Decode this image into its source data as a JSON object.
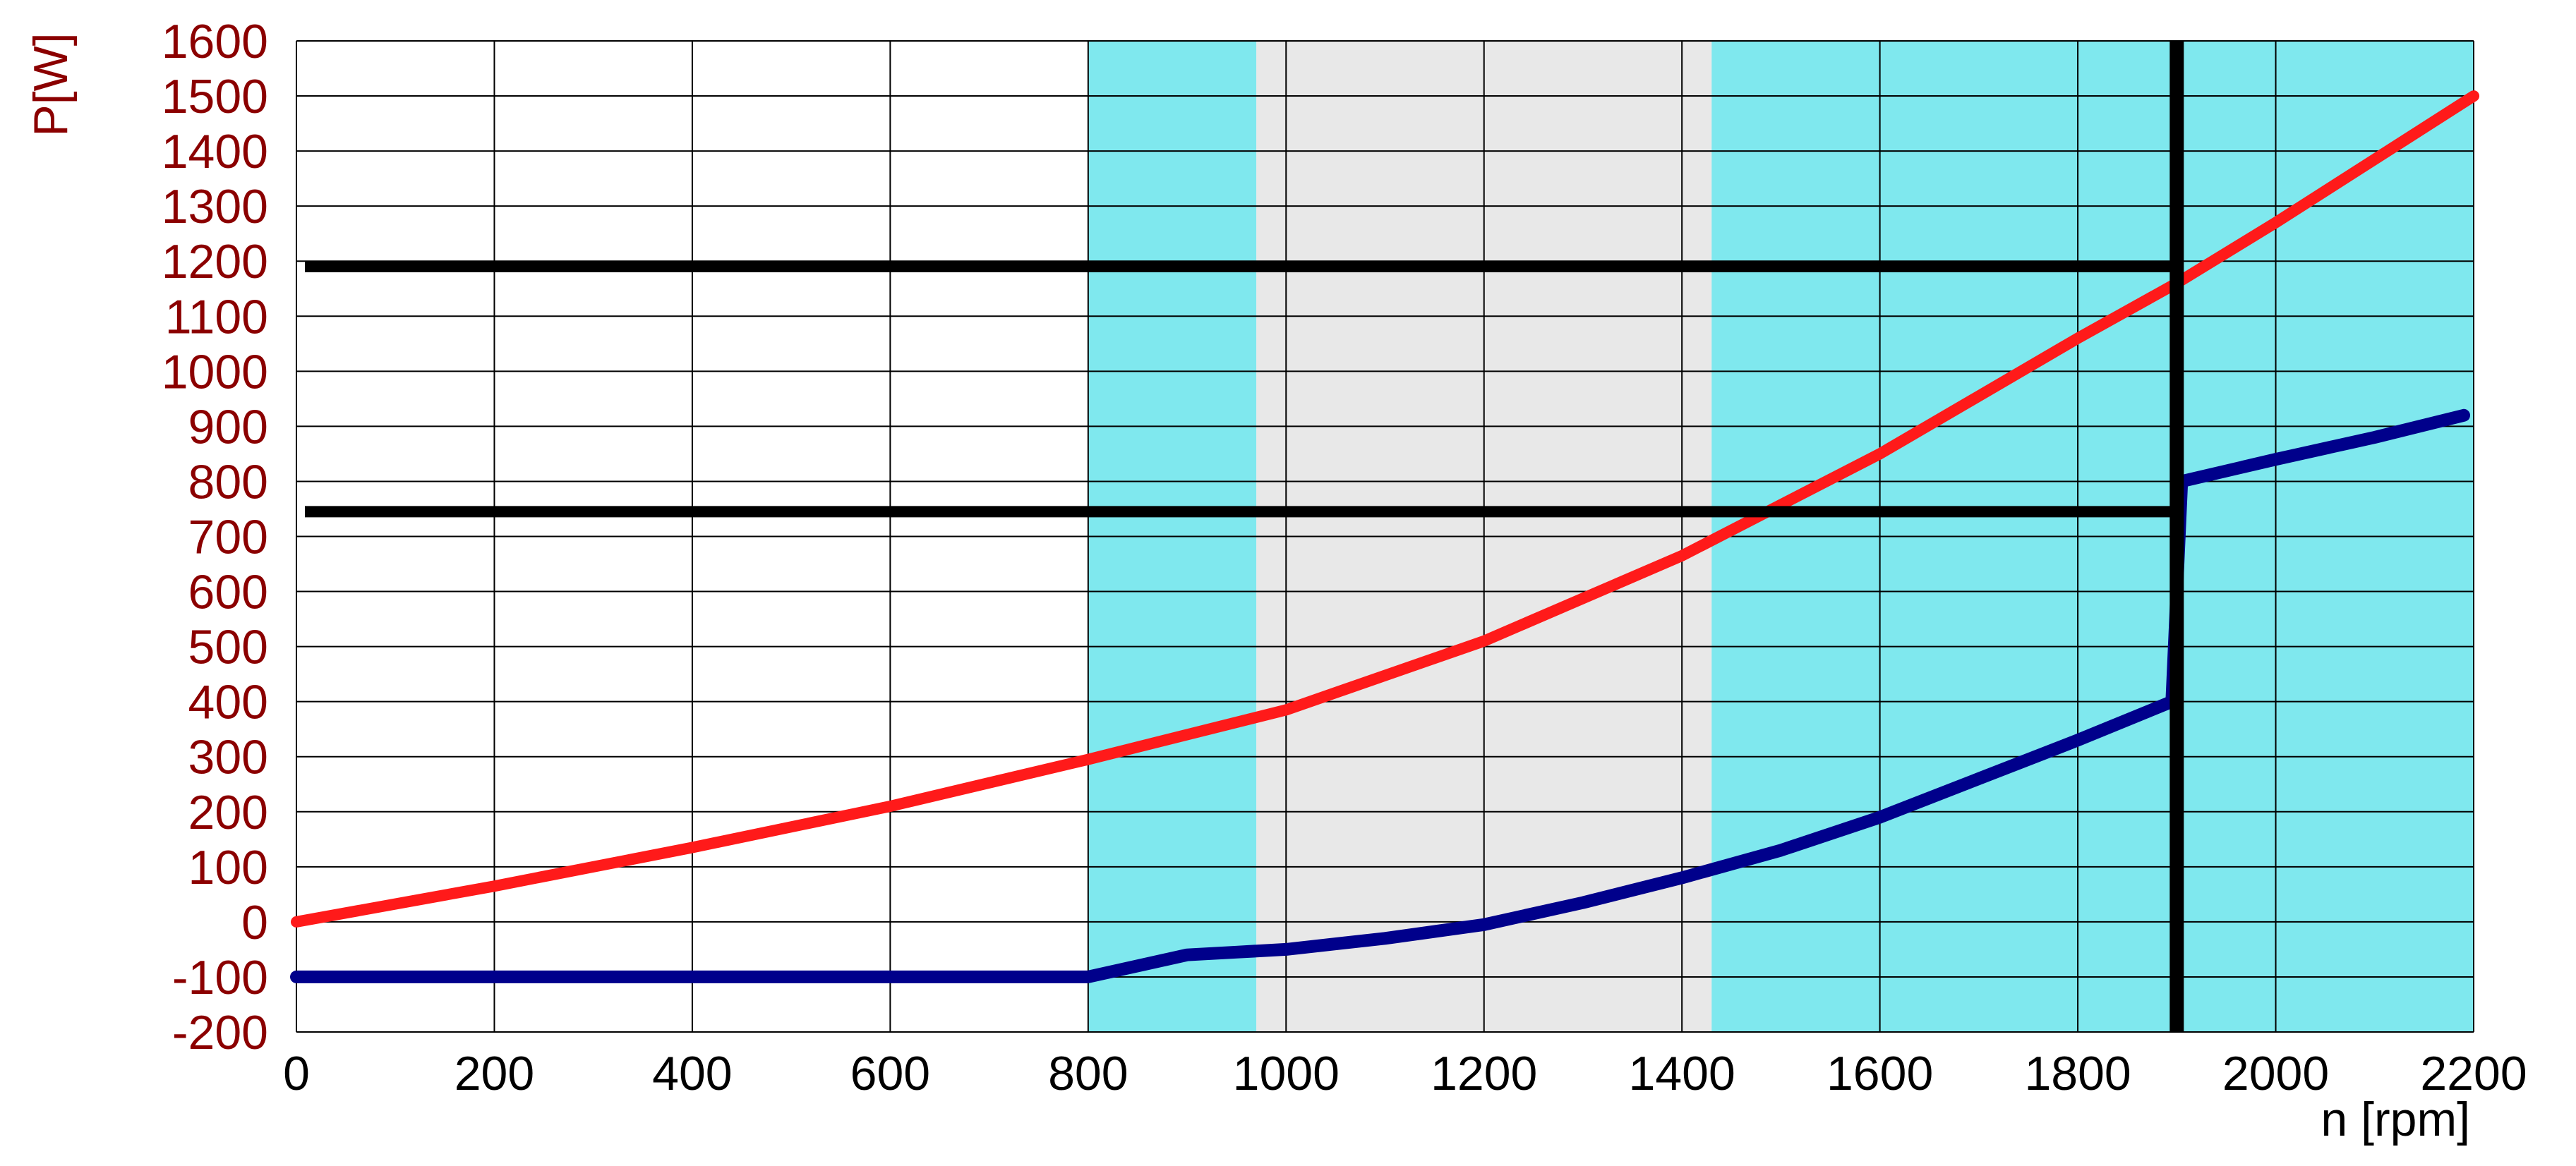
{
  "chart_data": {
    "type": "line",
    "title": "",
    "xlabel": "n [rpm]",
    "ylabel": "P[W]",
    "xlim": [
      0,
      2200
    ],
    "ylim": [
      -200,
      1600
    ],
    "x_ticks": [
      0,
      200,
      400,
      600,
      800,
      1000,
      1200,
      1400,
      1600,
      1800,
      2000,
      2200
    ],
    "y_ticks": [
      -200,
      -100,
      0,
      100,
      200,
      300,
      400,
      500,
      600,
      700,
      800,
      900,
      1000,
      1100,
      1200,
      1300,
      1400,
      1500,
      1600
    ],
    "x_tick_labels": [
      "0",
      "200",
      "400",
      "600",
      "800",
      "1000",
      "1200",
      "1400",
      "1600",
      "1800",
      "2000",
      "2200"
    ],
    "y_tick_labels": [
      "-200",
      "-100",
      "0",
      "100",
      "200",
      "300",
      "400",
      "500",
      "600",
      "700",
      "800",
      "900",
      "1000",
      "1100",
      "1200",
      "1300",
      "1400",
      "1500",
      "1600"
    ],
    "grid": true,
    "shaded_bands": [
      {
        "x": [
          800,
          970
        ],
        "color": "#7fe8ee"
      },
      {
        "x": [
          970,
          1430
        ],
        "color": "#e8e8e8"
      },
      {
        "x": [
          1430,
          2200
        ],
        "color": "#7fe8ee"
      }
    ],
    "reference_lines": [
      {
        "orientation": "horizontal",
        "y": 1190,
        "x": [
          0,
          1900
        ],
        "color": "#000000"
      },
      {
        "orientation": "horizontal",
        "y": 745,
        "x": [
          0,
          1900
        ],
        "color": "#000000"
      },
      {
        "orientation": "vertical",
        "x": 1900,
        "y": [
          -200,
          1600
        ],
        "color": "#000000"
      }
    ],
    "series": [
      {
        "color": "#ff1a1a",
        "x": [
          0,
          200,
          400,
          600,
          800,
          1000,
          1200,
          1400,
          1600,
          1800,
          1900,
          2000,
          2200
        ],
        "y": [
          0,
          65,
          135,
          210,
          295,
          385,
          510,
          665,
          850,
          1060,
          1160,
          1270,
          1500
        ]
      },
      {
        "color": "#00008b",
        "x": [
          0,
          200,
          400,
          600,
          800,
          850,
          900,
          950,
          1000,
          1100,
          1200,
          1300,
          1400,
          1500,
          1600,
          1700,
          1800,
          1895,
          1905,
          2000,
          2100,
          2190
        ],
        "y": [
          -100,
          -100,
          -100,
          -100,
          -100,
          -80,
          -60,
          -55,
          -50,
          -30,
          -5,
          35,
          80,
          130,
          190,
          260,
          330,
          400,
          800,
          840,
          880,
          920
        ]
      }
    ]
  }
}
